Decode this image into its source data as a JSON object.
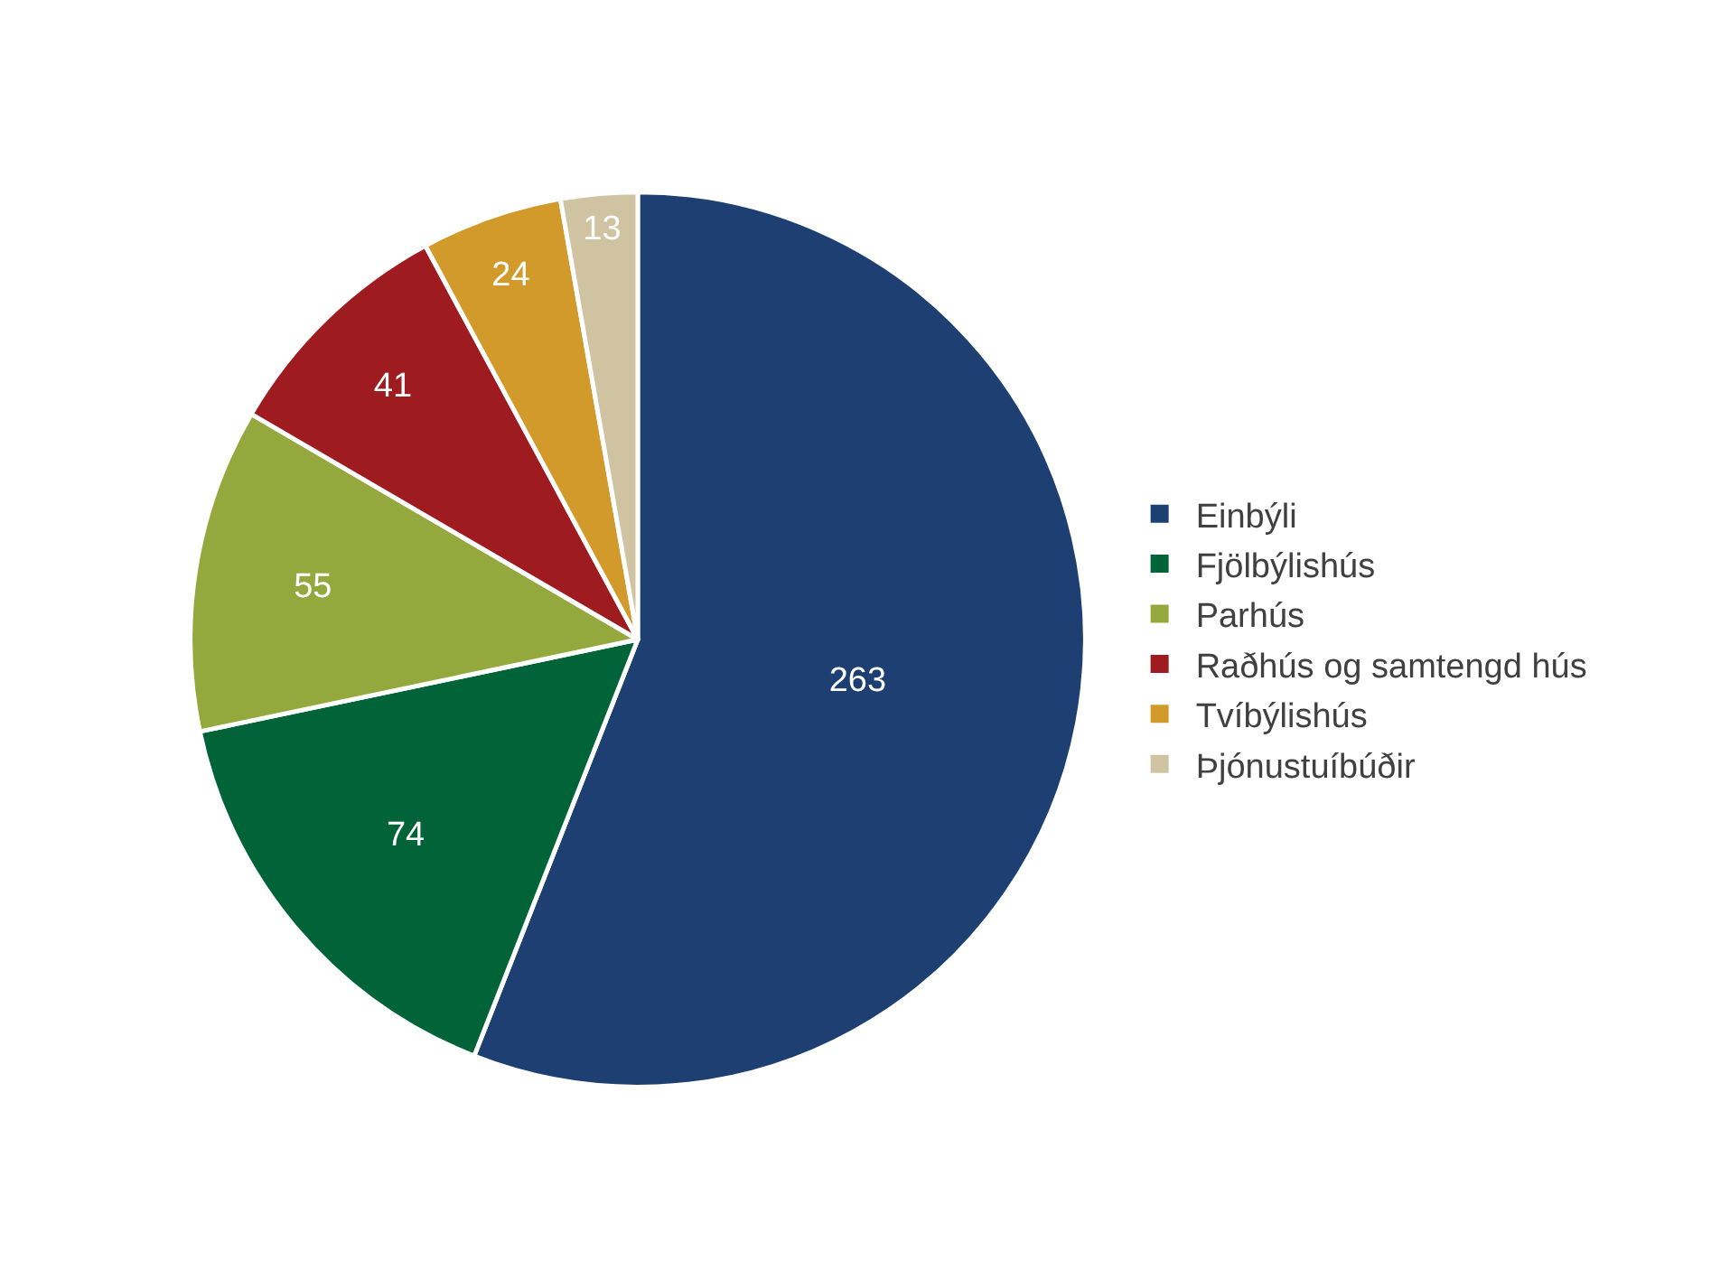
{
  "chart_data": {
    "type": "pie",
    "categories": [
      "Einbýli",
      "Fjölbýlishús",
      "Parhús",
      "Raðhús og samtengd hús",
      "Tvíbýlishús",
      "Þjónustuíbúðir"
    ],
    "values": [
      263,
      74,
      55,
      41,
      24,
      13
    ],
    "colors": [
      "#1d3f72",
      "#006438",
      "#95a83d",
      "#9e1b20",
      "#d29a2b",
      "#cfc3a1"
    ],
    "data_labels": true,
    "legend": "right"
  }
}
